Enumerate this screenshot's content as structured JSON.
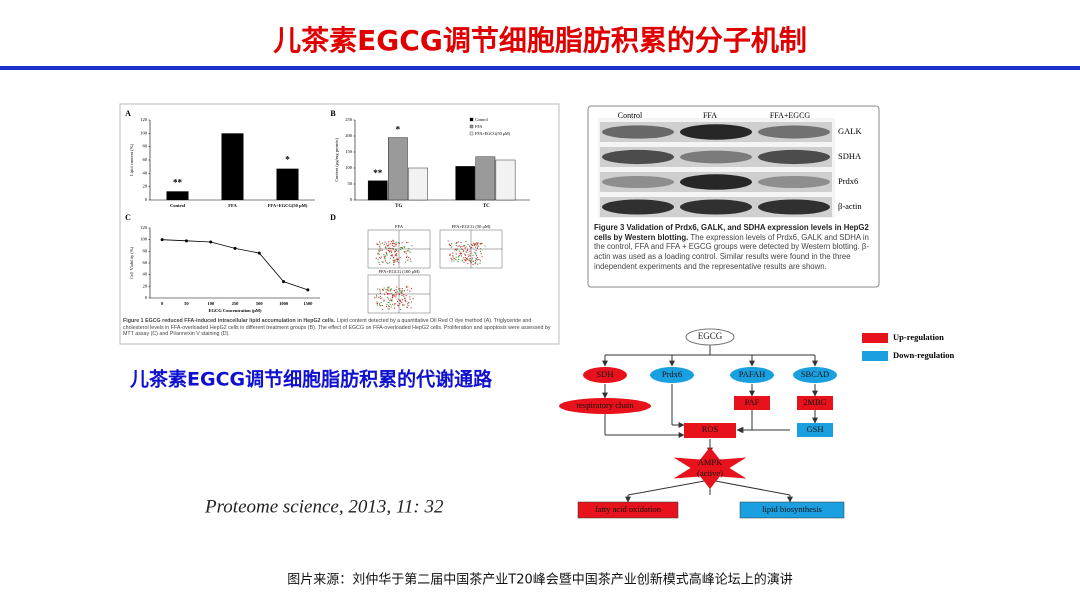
{
  "title": "儿茶素EGCG调节细胞脂肪积累的分子机制",
  "figure1": {
    "panel_a": {
      "letter": "A",
      "ylabel": "Lipid content (%)",
      "categories": [
        "Control",
        "FFA",
        "FFA+EGCG(50 μM)"
      ],
      "values": [
        13,
        100,
        47
      ],
      "annotations": [
        "**",
        null,
        "*"
      ],
      "ylim": [
        0,
        120
      ],
      "yticks": [
        0,
        20,
        40,
        60,
        80,
        100,
        120
      ],
      "color": "#000000"
    },
    "panel_b": {
      "letter": "B",
      "ylabel": "Content (μg/mg protein)",
      "categories": [
        "TG",
        "TC"
      ],
      "series": [
        {
          "name": "Control",
          "color": "#000000",
          "values": [
            60,
            105
          ]
        },
        {
          "name": "FFA",
          "color": "#9a9a9a",
          "values": [
            195,
            135
          ]
        },
        {
          "name": "FFA+EGCG(50 μM)",
          "color": "#f2f2f2",
          "values": [
            100,
            125
          ]
        }
      ],
      "annotations": [
        "**",
        "*"
      ],
      "ylim": [
        0,
        250
      ],
      "yticks": [
        0,
        50,
        100,
        150,
        200,
        250
      ]
    },
    "panel_c": {
      "letter": "C",
      "ylabel": "Cell Viability (%)",
      "xlabel": "EGCG  Concentration (μM)",
      "categories": [
        "0",
        "50",
        "100",
        "250",
        "500",
        "1000",
        "1500"
      ],
      "values": [
        100,
        98,
        96,
        85,
        77,
        28,
        14
      ],
      "ylim": [
        0,
        120
      ],
      "yticks": [
        0,
        20,
        40,
        60,
        80,
        100,
        120
      ]
    },
    "panel_d": {
      "letter": "D",
      "labels": [
        "FFA",
        "FFA+EGCG (50 μM)",
        "FFA+EGCG (100 μM)"
      ]
    },
    "caption_bold": "Figure 1 EGCG reduced FFA-induced intracellular lipid accumulation in HepG2 cells.",
    "caption": "Lipid content detected by a quantitative Oil Red O dye method (A). Triglyceride and cholesterol levels in FFA-overloaded HepG2 cells in different treatment groups (B). The effect of EGCG on FFA-overloaded HepG2 cells. Proliferation and apoptosis were assessed by MTT assay (C) and PI/annexin V staining (D)."
  },
  "figure3": {
    "columns": [
      "Control",
      "FFA",
      "FFA+EGCG"
    ],
    "rows": [
      "GALK",
      "SDHA",
      "Prdx6",
      "β-actin"
    ],
    "caption_bold": "Figure 3 Validation of Prdx6, GALK, and SDHA expression levels in HepG2 cells by Western blotting.",
    "caption": "The expression levels of Prdx6, GALK and SDHA in the control, FFA and FFA + EGCG groups were detected by Western blotting. β-actin was used as a loading control. Similar results were found in the three independent experiments and the representative results are shown."
  },
  "subtitle": "儿茶素EGCG调节细胞脂肪积累的代谢通路",
  "citation": "Proteome science, 2013, 11: 32",
  "pathway": {
    "legend": [
      "Up-regulation",
      "Down-regulation"
    ],
    "nodes": [
      "EGCG",
      "SDH",
      "Prdx6",
      "PAFAH",
      "SBCAD",
      "respiratory chain",
      "PAF",
      "2MBG",
      "ROS",
      "GSH",
      "AMPK",
      "(active)",
      "fatty acid oxidation",
      "lipid biosynthesis"
    ]
  },
  "footer": "图片来源：刘仲华于第二届中国茶产业T20峰会暨中国茶产业创新模式高峰论坛上的演讲"
}
